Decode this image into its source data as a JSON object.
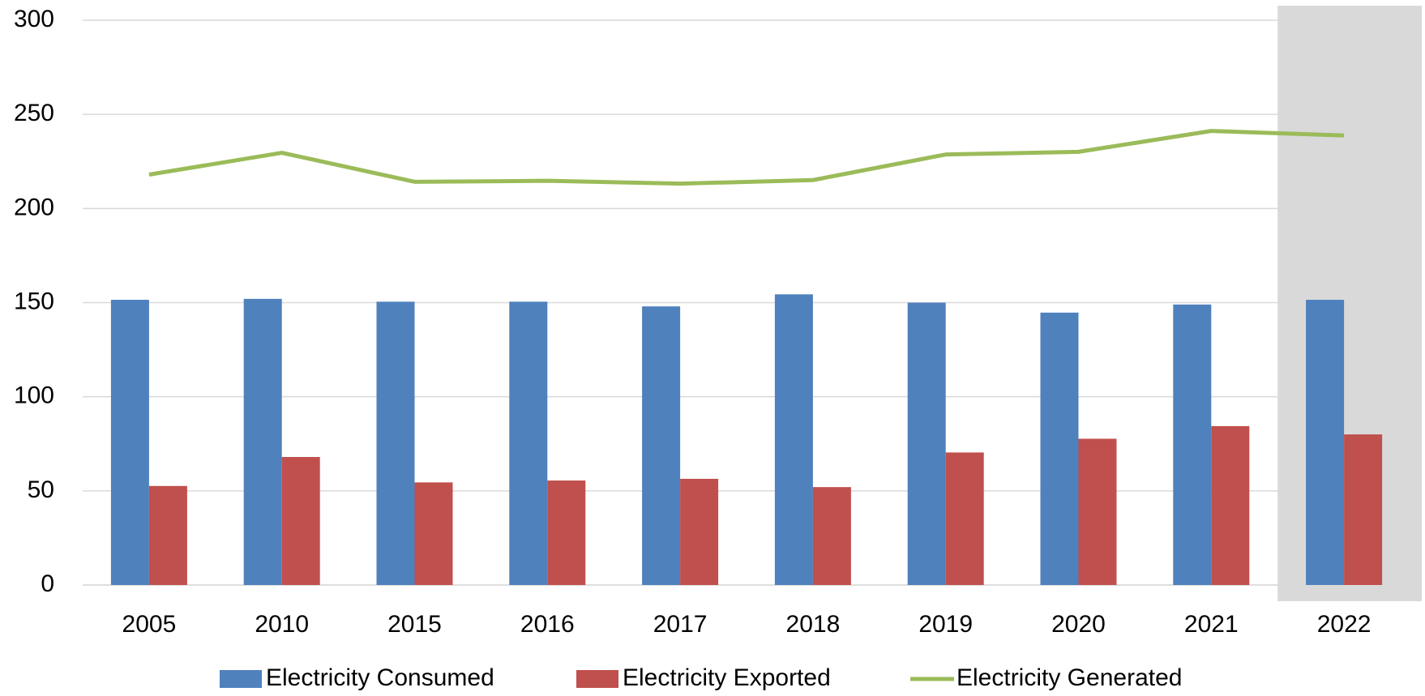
{
  "chart_data": {
    "type": "bar_line",
    "categories": [
      "2005",
      "2010",
      "2015",
      "2016",
      "2017",
      "2018",
      "2019",
      "2020",
      "2021",
      "2022"
    ],
    "series": [
      {
        "name": "Electricity Consumed",
        "type": "bar",
        "color": "#4f81bd",
        "values": [
          151.5,
          152,
          150.5,
          150.5,
          148,
          154.4,
          150,
          144.7,
          149,
          151.5
        ]
      },
      {
        "name": "Electricity Exported",
        "type": "bar",
        "color": "#c0504d",
        "values": [
          52.6,
          68,
          54.5,
          55.5,
          56.4,
          52,
          70.4,
          77.7,
          84.4,
          80
        ]
      },
      {
        "name": "Electricity Generated",
        "type": "line",
        "color": "#9bbb59",
        "values": [
          218,
          229.6,
          214.2,
          214.7,
          213.2,
          215.1,
          228.7,
          230.1,
          241.2,
          238.8
        ]
      }
    ],
    "ylim": [
      0,
      300
    ],
    "yticks": [
      0,
      50,
      100,
      150,
      200,
      250,
      300
    ],
    "grid": true,
    "highlight": "2022",
    "highlight_color": "#d9d9d9",
    "legend": "bottom"
  }
}
